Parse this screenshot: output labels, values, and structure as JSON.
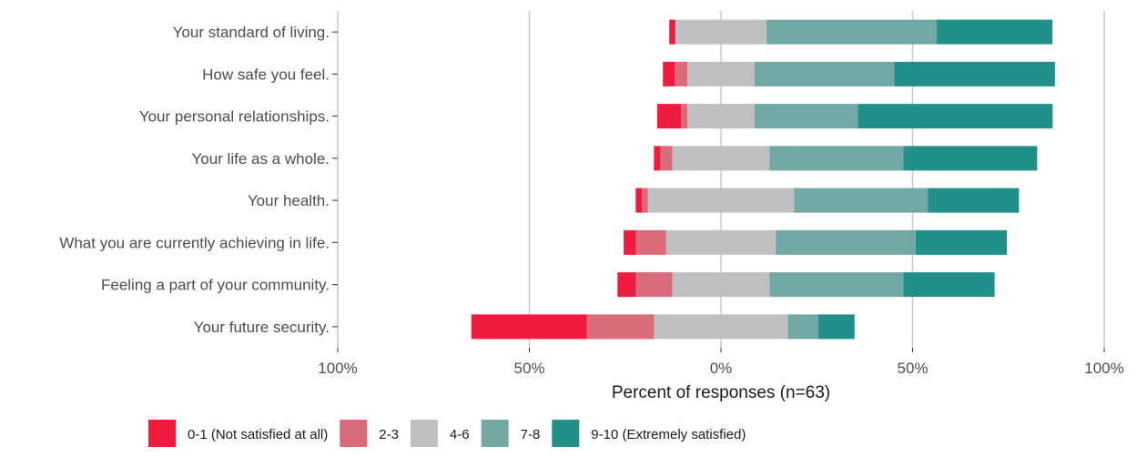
{
  "chart_data": {
    "type": "bar",
    "orientation": "horizontal",
    "stacked": "diverging",
    "xlabel": "Percent of responses (n=63)",
    "ylabel": "",
    "xlim": [
      -1,
      1
    ],
    "x_ticks": [
      {
        "value": -1,
        "label": "100%"
      },
      {
        "value": -0.5,
        "label": "50%"
      },
      {
        "value": 0,
        "label": "0%"
      },
      {
        "value": 0.5,
        "label": "50%"
      },
      {
        "value": 1,
        "label": "100%"
      }
    ],
    "grid": true,
    "legend_position": "bottom",
    "categories": [
      "Your standard of living.",
      "How safe you feel.",
      "Your personal relationships.",
      "Your life as a whole.",
      "Your health.",
      "What you are currently achieving in life.",
      "Feeling a part of your community.",
      "Your future security."
    ],
    "series": [
      {
        "name": "0-1 (Not satisfied at all)",
        "color": "#ef1c40",
        "values": [
          0.016,
          0.032,
          0.063,
          0.016,
          0.016,
          0.032,
          0.048,
          0.302
        ]
      },
      {
        "name": "2-3",
        "color": "#d96b7b",
        "values": [
          0.0,
          0.032,
          0.016,
          0.032,
          0.016,
          0.079,
          0.095,
          0.175
        ]
      },
      {
        "name": "4-6",
        "color": "#c0c0c0",
        "values": [
          0.238,
          0.175,
          0.175,
          0.254,
          0.381,
          0.286,
          0.254,
          0.349
        ]
      },
      {
        "name": "7-8",
        "color": "#72a9a5",
        "values": [
          0.444,
          0.365,
          0.27,
          0.349,
          0.349,
          0.365,
          0.349,
          0.079
        ]
      },
      {
        "name": "9-10 (Extremely satisfied)",
        "color": "#21908b",
        "values": [
          0.302,
          0.419,
          0.508,
          0.349,
          0.238,
          0.238,
          0.238,
          0.095
        ]
      }
    ]
  }
}
